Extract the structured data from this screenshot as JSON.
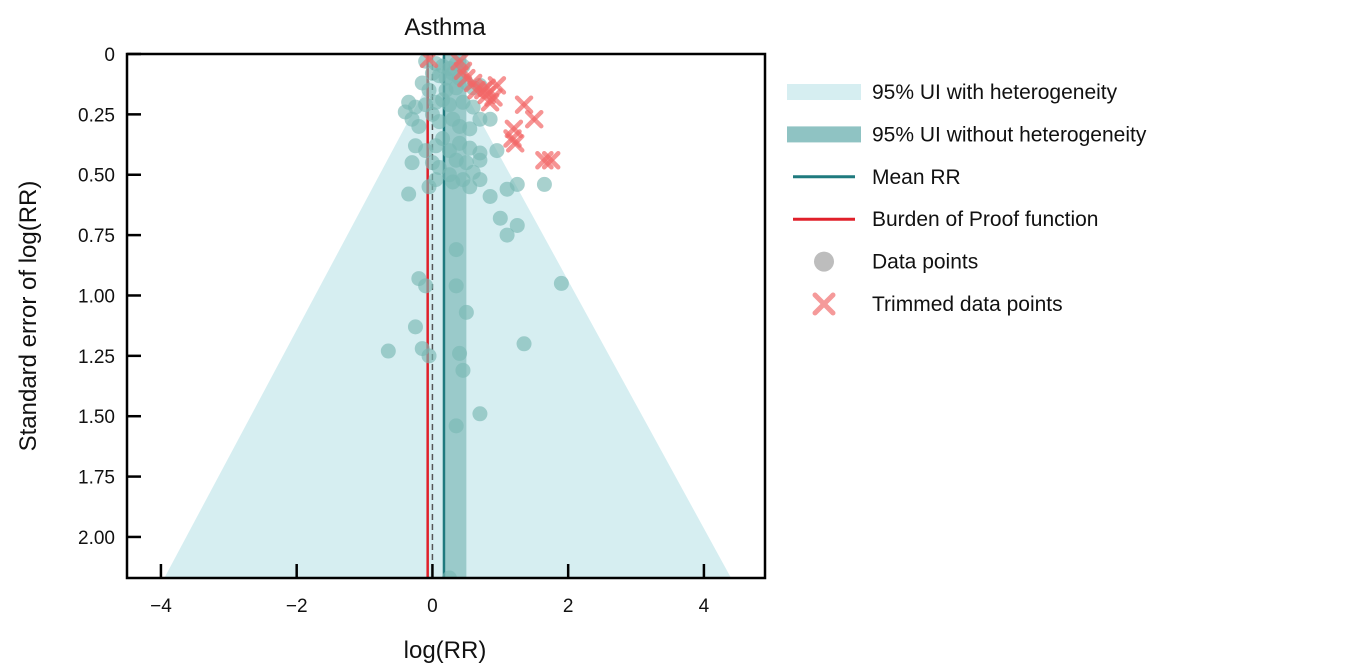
{
  "chart_data": {
    "type": "scatter",
    "subtype": "funnel-plot",
    "title": "Asthma",
    "xlabel": "log(RR)",
    "ylabel": "Standard error of log(RR)",
    "xlim": [
      -4.5,
      4.9
    ],
    "ylim": [
      0,
      2.17
    ],
    "y_inverted": true,
    "x_ticks": [
      -4,
      -2,
      0,
      2,
      4
    ],
    "x_tick_labels": [
      "−4",
      "−2",
      "0",
      "2",
      "4"
    ],
    "y_ticks": [
      0,
      0.25,
      0.5,
      0.75,
      1.0,
      1.25,
      1.5,
      1.75,
      2.0
    ],
    "y_tick_labels": [
      "0",
      "0.25",
      "0.50",
      "0.75",
      "1.00",
      "1.25",
      "1.50",
      "1.75",
      "2.00"
    ],
    "grid": false,
    "legend_position": "right",
    "mean_rr": 0.17,
    "burden_of_proof": -0.07,
    "null_line": 0,
    "ui_without_heterogeneity": [
      0.17,
      0.5
    ],
    "funnel_apex": {
      "x": 0.17,
      "y": 0
    },
    "funnel_base_at_y": 2.17,
    "funnel_base_left": -3.95,
    "funnel_base_right": 4.4,
    "legend": [
      {
        "label": "95% UI with heterogeneity",
        "kind": "band-light"
      },
      {
        "label": "95% UI without heterogeneity",
        "kind": "band-dark"
      },
      {
        "label": "Mean RR",
        "kind": "line-teal"
      },
      {
        "label": "Burden of Proof function",
        "kind": "line-red"
      },
      {
        "label": "Data points",
        "kind": "dot"
      },
      {
        "label": "Trimmed data points",
        "kind": "cross"
      }
    ],
    "colors": {
      "band_light": "#d6eef1",
      "band_dark": "#8fc3c3",
      "mean_line": "#1f7a7e",
      "bop_line": "#e0202a",
      "dot": "#79b8b3",
      "cross": "#f26666",
      "cross_core": "#e3212b",
      "axis": "#000000"
    },
    "points": [
      [
        -0.1,
        0.03
      ],
      [
        0.05,
        0.04
      ],
      [
        0.15,
        0.05
      ],
      [
        0.25,
        0.06
      ],
      [
        0.35,
        0.04
      ],
      [
        0.45,
        0.05
      ],
      [
        0.0,
        0.08
      ],
      [
        0.1,
        0.09
      ],
      [
        0.2,
        0.1
      ],
      [
        0.3,
        0.08
      ],
      [
        0.4,
        0.1
      ],
      [
        0.5,
        0.12
      ],
      [
        0.6,
        0.14
      ],
      [
        0.7,
        0.13
      ],
      [
        -0.15,
        0.12
      ],
      [
        -0.05,
        0.15
      ],
      [
        0.2,
        0.15
      ],
      [
        0.35,
        0.14
      ],
      [
        -0.35,
        0.2
      ],
      [
        -0.25,
        0.22
      ],
      [
        -0.1,
        0.21
      ],
      [
        0.05,
        0.2
      ],
      [
        0.15,
        0.19
      ],
      [
        0.25,
        0.21
      ],
      [
        0.45,
        0.2
      ],
      [
        0.6,
        0.22
      ],
      [
        -0.4,
        0.24
      ],
      [
        -0.3,
        0.27
      ],
      [
        -0.2,
        0.3
      ],
      [
        0.0,
        0.25
      ],
      [
        0.1,
        0.28
      ],
      [
        0.3,
        0.27
      ],
      [
        0.4,
        0.3
      ],
      [
        0.55,
        0.31
      ],
      [
        0.7,
        0.27
      ],
      [
        0.85,
        0.27
      ],
      [
        -0.25,
        0.38
      ],
      [
        -0.1,
        0.4
      ],
      [
        0.05,
        0.38
      ],
      [
        0.15,
        0.35
      ],
      [
        0.25,
        0.4
      ],
      [
        0.4,
        0.37
      ],
      [
        0.55,
        0.39
      ],
      [
        0.7,
        0.41
      ],
      [
        0.95,
        0.4
      ],
      [
        -0.3,
        0.45
      ],
      [
        0.0,
        0.45
      ],
      [
        0.1,
        0.47
      ],
      [
        0.25,
        0.5
      ],
      [
        0.35,
        0.44
      ],
      [
        0.5,
        0.45
      ],
      [
        0.6,
        0.49
      ],
      [
        0.7,
        0.44
      ],
      [
        0.05,
        0.52
      ],
      [
        0.3,
        0.53
      ],
      [
        0.45,
        0.52
      ],
      [
        0.55,
        0.55
      ],
      [
        0.7,
        0.52
      ],
      [
        0.85,
        0.59
      ],
      [
        1.1,
        0.56
      ],
      [
        1.25,
        0.54
      ],
      [
        1.65,
        0.54
      ],
      [
        -0.35,
        0.58
      ],
      [
        -0.05,
        0.55
      ],
      [
        1.0,
        0.68
      ],
      [
        1.25,
        0.71
      ],
      [
        1.1,
        0.75
      ],
      [
        0.35,
        0.81
      ],
      [
        -0.2,
        0.93
      ],
      [
        -0.1,
        0.96
      ],
      [
        0.35,
        0.96
      ],
      [
        1.9,
        0.95
      ],
      [
        0.5,
        1.07
      ],
      [
        -0.25,
        1.13
      ],
      [
        -0.15,
        1.22
      ],
      [
        -0.05,
        1.25
      ],
      [
        0.4,
        1.24
      ],
      [
        0.45,
        1.31
      ],
      [
        -0.65,
        1.23
      ],
      [
        1.35,
        1.2
      ],
      [
        0.7,
        1.49
      ],
      [
        0.35,
        1.54
      ],
      [
        0.25,
        2.17
      ]
    ],
    "trimmed_points": [
      [
        -0.05,
        0.02
      ],
      [
        0.4,
        0.03
      ],
      [
        0.45,
        0.07
      ],
      [
        0.5,
        0.1
      ],
      [
        0.6,
        0.12
      ],
      [
        0.65,
        0.15
      ],
      [
        0.75,
        0.15
      ],
      [
        0.8,
        0.17
      ],
      [
        0.85,
        0.2
      ],
      [
        0.95,
        0.13
      ],
      [
        0.9,
        0.18
      ],
      [
        0.8,
        0.14
      ],
      [
        1.35,
        0.21
      ],
      [
        1.5,
        0.27
      ],
      [
        1.2,
        0.31
      ],
      [
        1.18,
        0.35
      ],
      [
        1.22,
        0.37
      ],
      [
        1.65,
        0.44
      ],
      [
        1.75,
        0.44
      ]
    ]
  }
}
